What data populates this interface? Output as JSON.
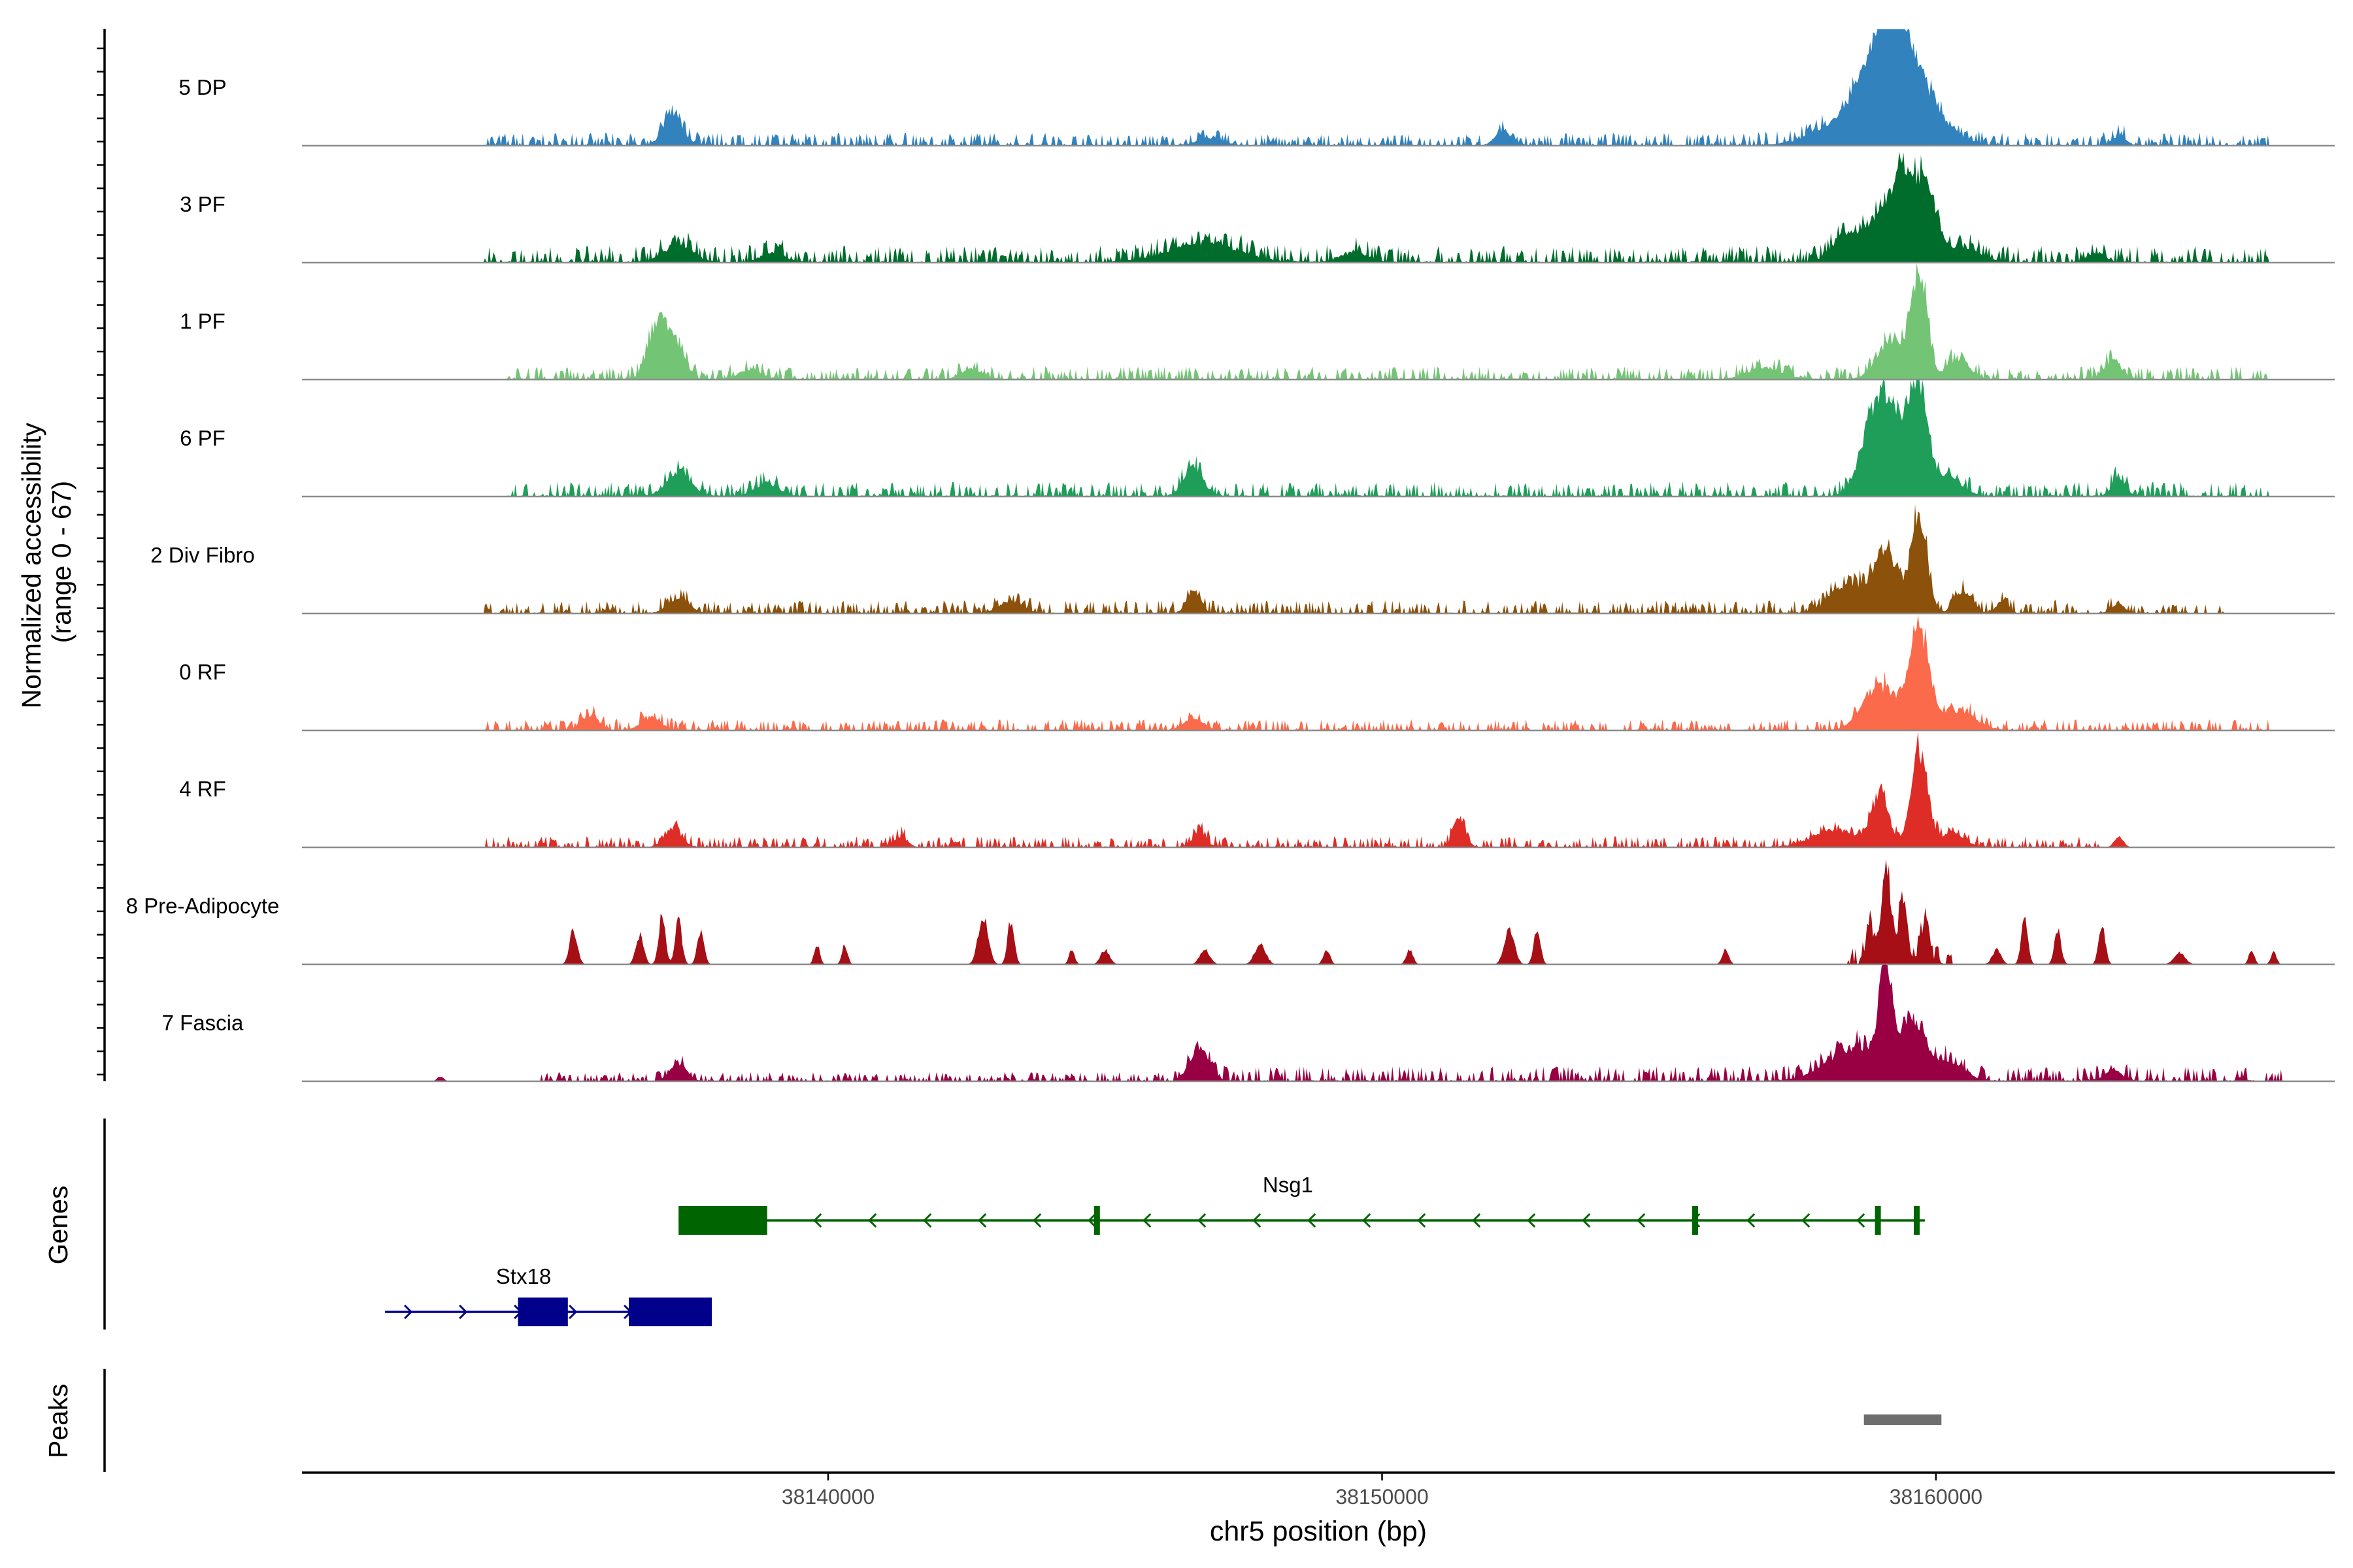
{
  "chart_data": {
    "type": "area",
    "title": "",
    "y_axis_label_line1": "Normalized accessibility",
    "y_axis_label_line2": "(range 0 - 67)",
    "ylim": [
      0,
      67
    ],
    "xlabel": "chr5 position (bp)",
    "xlim": [
      38130500,
      38167200
    ],
    "x_ticks": [
      38140000,
      38150000,
      38160000
    ],
    "x_tick_labels": [
      "38140000",
      "38150000",
      "38160000"
    ],
    "tracks": [
      {
        "name": "5 DP",
        "color": "#3182bd",
        "base": [
          [
            38133800,
            38144000,
            0.07
          ],
          [
            38144000,
            38153300,
            0.06
          ],
          [
            38153300,
            38166000,
            0.07
          ]
        ],
        "peaks": [
          [
            38137200,
            180,
            0.28
          ],
          [
            38146900,
            220,
            0.08
          ],
          [
            38152200,
            150,
            0.14
          ],
          [
            38159100,
            400,
            0.7
          ],
          [
            38159500,
            500,
            0.62
          ],
          [
            38158500,
            600,
            0.25
          ],
          [
            38163300,
            120,
            0.1
          ]
        ]
      },
      {
        "name": "3 PF",
        "color": "#006d2c",
        "base": [
          [
            38133800,
            38166000,
            0.09
          ]
        ],
        "peaks": [
          [
            38137300,
            250,
            0.18
          ],
          [
            38139000,
            200,
            0.1
          ],
          [
            38146800,
            600,
            0.2
          ],
          [
            38149500,
            250,
            0.1
          ],
          [
            38158400,
            250,
            0.3
          ],
          [
            38159400,
            170,
            0.78
          ],
          [
            38159800,
            200,
            0.8
          ],
          [
            38159000,
            220,
            0.48
          ],
          [
            38160500,
            300,
            0.15
          ],
          [
            38162900,
            150,
            0.1
          ]
        ]
      },
      {
        "name": "1 PF",
        "color": "#74c476",
        "base": [
          [
            38134200,
            38166000,
            0.07
          ]
        ],
        "peaks": [
          [
            38136900,
            160,
            0.5
          ],
          [
            38137200,
            180,
            0.4
          ],
          [
            38138600,
            200,
            0.1
          ],
          [
            38142600,
            180,
            0.1
          ],
          [
            38156900,
            300,
            0.12
          ],
          [
            38159200,
            250,
            0.4
          ],
          [
            38159700,
            140,
            1.05
          ],
          [
            38160400,
            200,
            0.2
          ],
          [
            38163200,
            150,
            0.2
          ]
        ]
      },
      {
        "name": "6 PF",
        "color": "#1f9e59",
        "base": [
          [
            38134200,
            38166000,
            0.08
          ]
        ],
        "peaks": [
          [
            38137300,
            220,
            0.22
          ],
          [
            38138900,
            200,
            0.13
          ],
          [
            38146600,
            170,
            0.3
          ],
          [
            38158900,
            250,
            0.8
          ],
          [
            38159700,
            150,
            1.0
          ],
          [
            38159300,
            250,
            0.6
          ],
          [
            38160200,
            250,
            0.2
          ],
          [
            38163300,
            120,
            0.18
          ]
        ]
      },
      {
        "name": "2 Div Fibro",
        "color": "#8c510a",
        "base": [
          [
            38133800,
            38163300,
            0.07
          ],
          [
            38163300,
            38165200,
            0.05
          ]
        ],
        "peaks": [
          [
            38137300,
            180,
            0.15
          ],
          [
            38143300,
            200,
            0.12
          ],
          [
            38146600,
            120,
            0.25
          ],
          [
            38158400,
            300,
            0.3
          ],
          [
            38159100,
            220,
            0.65
          ],
          [
            38159700,
            140,
            1.0
          ],
          [
            38160500,
            150,
            0.22
          ],
          [
            38161200,
            100,
            0.13
          ],
          [
            38163300,
            100,
            0.1
          ]
        ]
      },
      {
        "name": "0 RF",
        "color": "#fb6a4a",
        "base": [
          [
            38133800,
            38166000,
            0.06
          ]
        ],
        "peaks": [
          [
            38135700,
            150,
            0.15
          ],
          [
            38136800,
            170,
            0.13
          ],
          [
            38146600,
            170,
            0.12
          ],
          [
            38159000,
            300,
            0.45
          ],
          [
            38159700,
            180,
            1.0
          ],
          [
            38160400,
            300,
            0.2
          ]
        ]
      },
      {
        "name": "4 RF",
        "color": "#de2d26",
        "base": [
          [
            38133800,
            38163000,
            0.06
          ]
        ],
        "peaks": [
          [
            38137200,
            150,
            0.2
          ],
          [
            38141300,
            120,
            0.1
          ],
          [
            38146700,
            120,
            0.15
          ],
          [
            38151400,
            100,
            0.3
          ],
          [
            38158200,
            400,
            0.18
          ],
          [
            38159000,
            150,
            0.55
          ],
          [
            38159700,
            150,
            1.0
          ],
          [
            38160300,
            200,
            0.15
          ],
          [
            38163300,
            80,
            0.12
          ]
        ]
      },
      {
        "name": "8 Pre-Adipocyte",
        "color": "#a50f15",
        "base": [
          [
            38158400,
            38160300,
            0.1
          ]
        ],
        "peaks": [
          [
            38135400,
            70,
            0.35
          ],
          [
            38136600,
            70,
            0.3
          ],
          [
            38137000,
            60,
            0.5
          ],
          [
            38137300,
            60,
            0.45
          ],
          [
            38137700,
            60,
            0.35
          ],
          [
            38139800,
            50,
            0.2
          ],
          [
            38140300,
            50,
            0.2
          ],
          [
            38142800,
            90,
            0.5
          ],
          [
            38143300,
            60,
            0.45
          ],
          [
            38144400,
            50,
            0.15
          ],
          [
            38145000,
            80,
            0.15
          ],
          [
            38146800,
            90,
            0.15
          ],
          [
            38147800,
            100,
            0.2
          ],
          [
            38149000,
            60,
            0.15
          ],
          [
            38150500,
            60,
            0.15
          ],
          [
            38152300,
            90,
            0.35
          ],
          [
            38152800,
            60,
            0.35
          ],
          [
            38156200,
            60,
            0.15
          ],
          [
            38158800,
            60,
            0.45
          ],
          [
            38159100,
            80,
            1.0
          ],
          [
            38159400,
            80,
            0.6
          ],
          [
            38159800,
            80,
            0.4
          ],
          [
            38161100,
            80,
            0.15
          ],
          [
            38161600,
            60,
            0.45
          ],
          [
            38162200,
            60,
            0.35
          ],
          [
            38163000,
            60,
            0.4
          ],
          [
            38164400,
            100,
            0.12
          ],
          [
            38165700,
            50,
            0.15
          ],
          [
            38166100,
            50,
            0.12
          ]
        ]
      },
      {
        "name": "7 Fascia",
        "color": "#980043",
        "base": [
          [
            38134800,
            38146200,
            0.05
          ],
          [
            38146200,
            38166300,
            0.08
          ]
        ],
        "peaks": [
          [
            38133000,
            60,
            0.05
          ],
          [
            38137300,
            150,
            0.18
          ],
          [
            38146700,
            170,
            0.35
          ],
          [
            38158600,
            500,
            0.35
          ],
          [
            38159100,
            120,
            1.0
          ],
          [
            38159600,
            200,
            0.55
          ],
          [
            38160200,
            300,
            0.2
          ],
          [
            38163200,
            150,
            0.12
          ]
        ]
      }
    ],
    "genes": [
      {
        "name": "Nsg1",
        "color": "#006400",
        "strand": "-",
        "start": 38137300,
        "end": 38159800,
        "exons": [
          [
            38137300,
            38138900
          ],
          [
            38144800,
            38144900
          ],
          [
            38155600,
            38155700
          ],
          [
            38158900,
            38159000
          ],
          [
            38159600,
            38159650
          ]
        ]
      },
      {
        "name": "Stx18",
        "color": "#00008b",
        "strand": "+",
        "start": 38132000,
        "end": 38137900,
        "exons": [
          [
            38134400,
            38135300
          ],
          [
            38136400,
            38137900
          ]
        ]
      }
    ],
    "peaks_track": [
      [
        38158700,
        38160100
      ]
    ],
    "panel_labels": {
      "genes": "Genes",
      "peaks": "Peaks"
    }
  }
}
